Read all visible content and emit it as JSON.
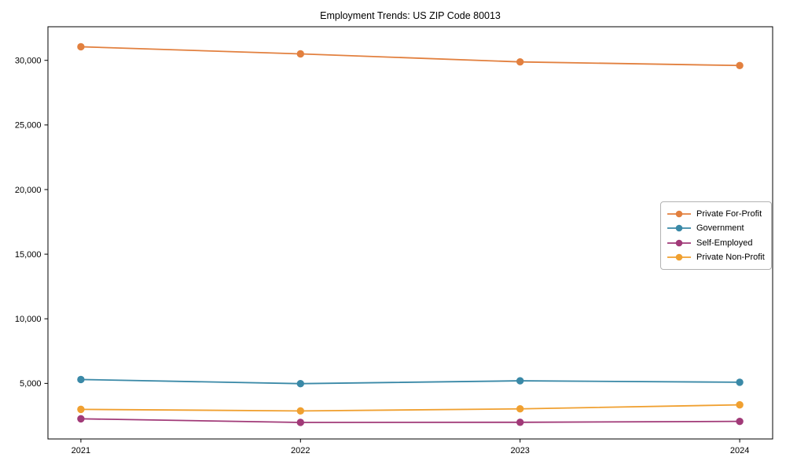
{
  "window": {
    "title": "Employment Trends: US ZIP Code 80013"
  },
  "chart_data": {
    "type": "line",
    "title": "Employment Trends: US ZIP Code 80013",
    "xlabel": "",
    "ylabel": "",
    "x": [
      2021,
      2022,
      2023,
      2024
    ],
    "x_tick_labels": [
      "2021",
      "2022",
      "2023",
      "2024"
    ],
    "y_ticks": [
      5000,
      10000,
      15000,
      20000,
      25000,
      30000
    ],
    "y_tick_labels": [
      "5,000",
      "10,000",
      "15,000",
      "20,000",
      "25,000",
      "30,000"
    ],
    "xlim": [
      2020.85,
      2024.15
    ],
    "ylim": [
      700,
      32600
    ],
    "grid": false,
    "legend_position": "center-right",
    "marker": "circle",
    "axis_color": "#000000",
    "series": [
      {
        "name": "Private For-Profit",
        "color": "#e2803f",
        "values": [
          31050,
          30500,
          29880,
          29600
        ]
      },
      {
        "name": "Government",
        "color": "#3a89a7",
        "values": [
          5300,
          4980,
          5200,
          5090
        ]
      },
      {
        "name": "Self-Employed",
        "color": "#a13a78",
        "values": [
          2260,
          1980,
          1990,
          2060
        ]
      },
      {
        "name": "Private Non-Profit",
        "color": "#f0a030",
        "values": [
          2990,
          2870,
          3030,
          3340
        ]
      }
    ]
  }
}
